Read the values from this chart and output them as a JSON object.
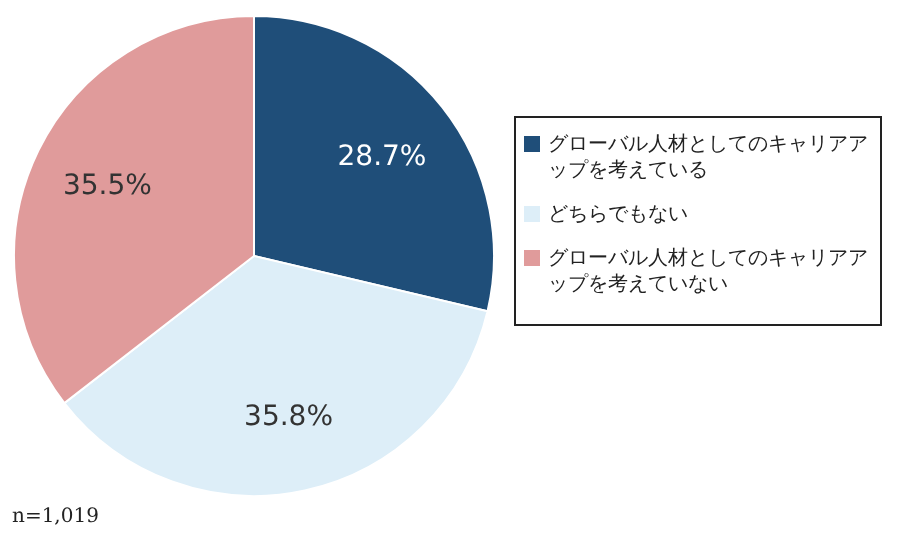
{
  "chart_data": {
    "type": "pie",
    "categories": [
      "グローバル人材としてのキャリアアップを考えている",
      "どちらでもない",
      "グローバル人材としてのキャリアアップを考えていない"
    ],
    "values": [
      28.7,
      35.8,
      35.5
    ],
    "value_labels": [
      "28.7%",
      "35.8%",
      "35.5%"
    ],
    "colors": [
      "#1f4e79",
      "#ddeef8",
      "#e09b9b"
    ],
    "legend": "right",
    "annotations": [
      "n=1,019"
    ]
  }
}
